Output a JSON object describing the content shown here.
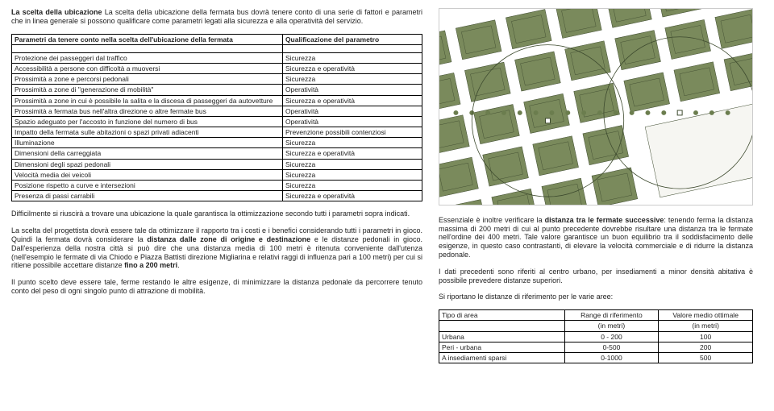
{
  "intro": {
    "lead": "La scelta della ubicazione",
    "text": " La scelta della ubicazione della fermata bus dovrà tenere conto di una serie di fattori e parametri che in linea generale si possono qualificare come parametri legati alla sicurezza e alla operatività del servizio."
  },
  "table1": {
    "header_left": "Parametri da tenere conto nella scelta dell'ubicazione della fermata",
    "header_right": "Qualificazione del parametro",
    "rows": [
      [
        "Protezione dei passeggeri dal traffico",
        "Sicurezza"
      ],
      [
        "Accessibilità a persone con difficoltà a muoversi",
        "Sicurezza e operatività"
      ],
      [
        "Prossimità a zone e percorsi pedonali",
        "Sicurezza"
      ],
      [
        "Prossimità a zone di \"generazione di mobilità\"",
        "Operatività"
      ],
      [
        "Prossimità a zone in cui è possibile la salita e la discesa di passeggeri da autovetture",
        "Sicurezza e operatività"
      ],
      [
        "Prossimità a fermata bus nell'altra direzione o altre fermate bus",
        "Operatività"
      ],
      [
        "Spazio adeguato per l'accosto in funzione del numero di bus",
        "Operatività"
      ],
      [
        "Impatto della fermata sulle abitazioni o spazi privati adiacenti",
        "Prevenzione possibili contenziosi"
      ],
      [
        "Illuminazione",
        "Sicurezza"
      ],
      [
        "Dimensioni della carreggiata",
        "Sicurezza e operatività"
      ],
      [
        "Dimensioni degli spazi pedonali",
        "Sicurezza"
      ],
      [
        "Velocità media dei veicoli",
        "Sicurezza"
      ],
      [
        "Posizione rispetto a curve e intersezioni",
        "Sicurezza"
      ],
      [
        "Presenza di passi carrabili",
        "Sicurezza e operatività"
      ]
    ]
  },
  "para1": "Difficilmente si riuscirà a trovare una ubicazione la quale garantisca la ottimizzazione secondo tutti i parametri sopra indicati.",
  "para2_a": "La scelta del progettista dovrà essere tale da ottimizzare il rapporto tra i costi e i benefici considerando tutti i parametri in gioco. Quindi la fermata dovrà considerare la ",
  "para2_b": "distanza dalle zone di origine e destinazione",
  "para2_c": " e le distanze pedonali in gioco. Dall'esperienza della nostra città si può dire che una distanza media di 100 metri è ritenuta conveniente dall'utenza (nell'esempio le fermate di via Chiodo e Piazza Battisti direzione Migliarina e relativi raggi di influenza pari a 100 metri) per cui si ritiene possibile accettare distanze ",
  "para2_d": "fino a 200 metri",
  "para2_e": ".",
  "para3": "Il punto scelto deve essere tale, ferme restando le altre esigenze, di minimizzare la distanza pedonale da percorrere tenuto conto del peso di ogni singolo punto di attrazione di mobilità.",
  "right": {
    "para1_a": "Essenziale è inoltre verificare la ",
    "para1_b": "distanza tra le fermate successive",
    "para1_c": ": tenendo ferma la distanza massima di 200 metri di cui al punto precedente dovrebbe risultare una distanza tra le fermate nell'ordine dei 400 metri. Tale valore garantisce un buon equilibrio tra il soddisfacimento delle esigenze, in questo caso contrastanti, di elevare la velocità commerciale e di ridurre la distanza pedonale.",
    "para2": "I dati precedenti sono riferiti al centro urbano, per insediamenti a minor densità abitativa è possibile prevedere distanze superiori.",
    "para3": "Si riportano le distanze di riferimento per le varie aree:"
  },
  "table2": {
    "headers": [
      "Tipo di area",
      "Range di riferimento",
      "Valore medio ottimale"
    ],
    "unit": "(in metri)",
    "rows": [
      [
        "Urbana",
        "0 - 200",
        "100"
      ],
      [
        "Peri - urbana",
        "0-500",
        "200"
      ],
      [
        "A insediamenti sparsi",
        "0-1000",
        "500"
      ]
    ]
  },
  "map": {
    "bg": "#ffffff",
    "block_fill": "#7a8a5c",
    "block_stroke": "#3d4a2e",
    "circle_stroke": "#3d4a2e",
    "tree": "#6b7d4e"
  }
}
